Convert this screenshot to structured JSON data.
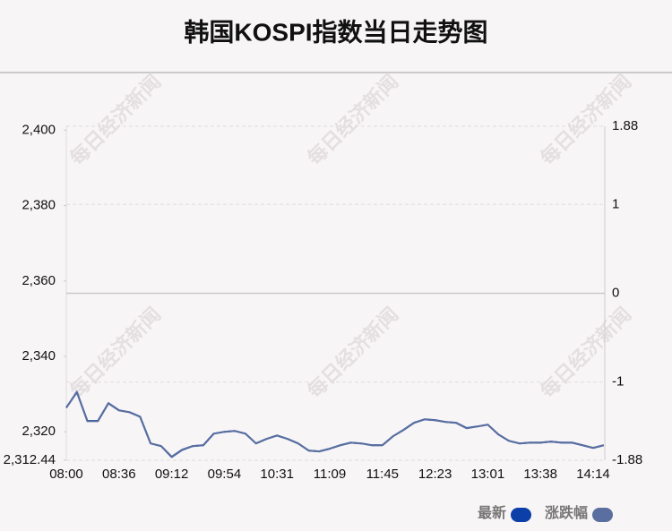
{
  "chart_data": {
    "type": "line",
    "title": "韩国KOSPI指数当日走势图",
    "watermark": "每日经济新闻",
    "categories": [
      "08:00",
      null,
      null,
      null,
      null,
      "08:36",
      null,
      null,
      null,
      null,
      "09:12",
      null,
      null,
      null,
      null,
      "09:54",
      null,
      null,
      null,
      null,
      "10:31",
      null,
      null,
      null,
      null,
      "11:09",
      null,
      null,
      null,
      null,
      "11:45",
      null,
      null,
      null,
      null,
      "12:23",
      null,
      null,
      null,
      null,
      "13:01",
      null,
      null,
      null,
      null,
      "13:38",
      null,
      null,
      null,
      null,
      "14:14",
      null
    ],
    "series": [
      {
        "name": "最新",
        "color": "#0d3fa8",
        "values": [
          2326.4,
          2330.5,
          2322.9,
          2322.9,
          2327.6,
          2325.7,
          2325.2,
          2324,
          2316.9,
          2316.2,
          2313.3,
          2315.2,
          2316.2,
          2316.4,
          2319.5,
          2320,
          2320.2,
          2319.5,
          2316.9,
          2318.1,
          2319,
          2318.1,
          2316.9,
          2315,
          2314.8,
          2315.5,
          2316.4,
          2317.1,
          2316.9,
          2316.4,
          2316.4,
          2318.8,
          2320.5,
          2322.4,
          2323.3,
          2323.1,
          2322.6,
          2322.4,
          2321,
          2321.4,
          2321.9,
          2319.3,
          2317.6,
          2316.9,
          2317.1,
          2317.1,
          2317.4,
          2317.1,
          2317.1,
          2316.4,
          2315.7,
          2316.4
        ]
      },
      {
        "name": "涨跌幅",
        "color": "#5a6f9f",
        "axis": "y2",
        "values": [
          -1.29,
          -1.11,
          -1.44,
          -1.44,
          -1.24,
          -1.32,
          -1.34,
          -1.39,
          -1.69,
          -1.72,
          -1.84,
          -1.76,
          -1.72,
          -1.71,
          -1.58,
          -1.56,
          -1.55,
          -1.58,
          -1.69,
          -1.64,
          -1.6,
          -1.64,
          -1.69,
          -1.77,
          -1.78,
          -1.75,
          -1.71,
          -1.68,
          -1.69,
          -1.71,
          -1.71,
          -1.61,
          -1.54,
          -1.46,
          -1.42,
          -1.43,
          -1.45,
          -1.46,
          -1.52,
          -1.5,
          -1.48,
          -1.59,
          -1.66,
          -1.69,
          -1.68,
          -1.68,
          -1.67,
          -1.68,
          -1.68,
          -1.71,
          -1.74,
          -1.71
        ]
      }
    ],
    "ylim": [
      2312.44,
      2401.05
    ],
    "yticks": [
      {
        "value": 2312.44,
        "label": "2,312.44"
      },
      {
        "value": 2320,
        "label": "2,320"
      },
      {
        "value": 2340,
        "label": "2,340"
      },
      {
        "value": 2360,
        "label": "2,360"
      },
      {
        "value": 2380,
        "label": "2,380"
      },
      {
        "value": 2400,
        "label": "2,400"
      }
    ],
    "y2lim": [
      -1.88,
      1.88
    ],
    "y2ticks": [
      -1.88,
      -1,
      0,
      1,
      1.88
    ],
    "grid": true
  }
}
